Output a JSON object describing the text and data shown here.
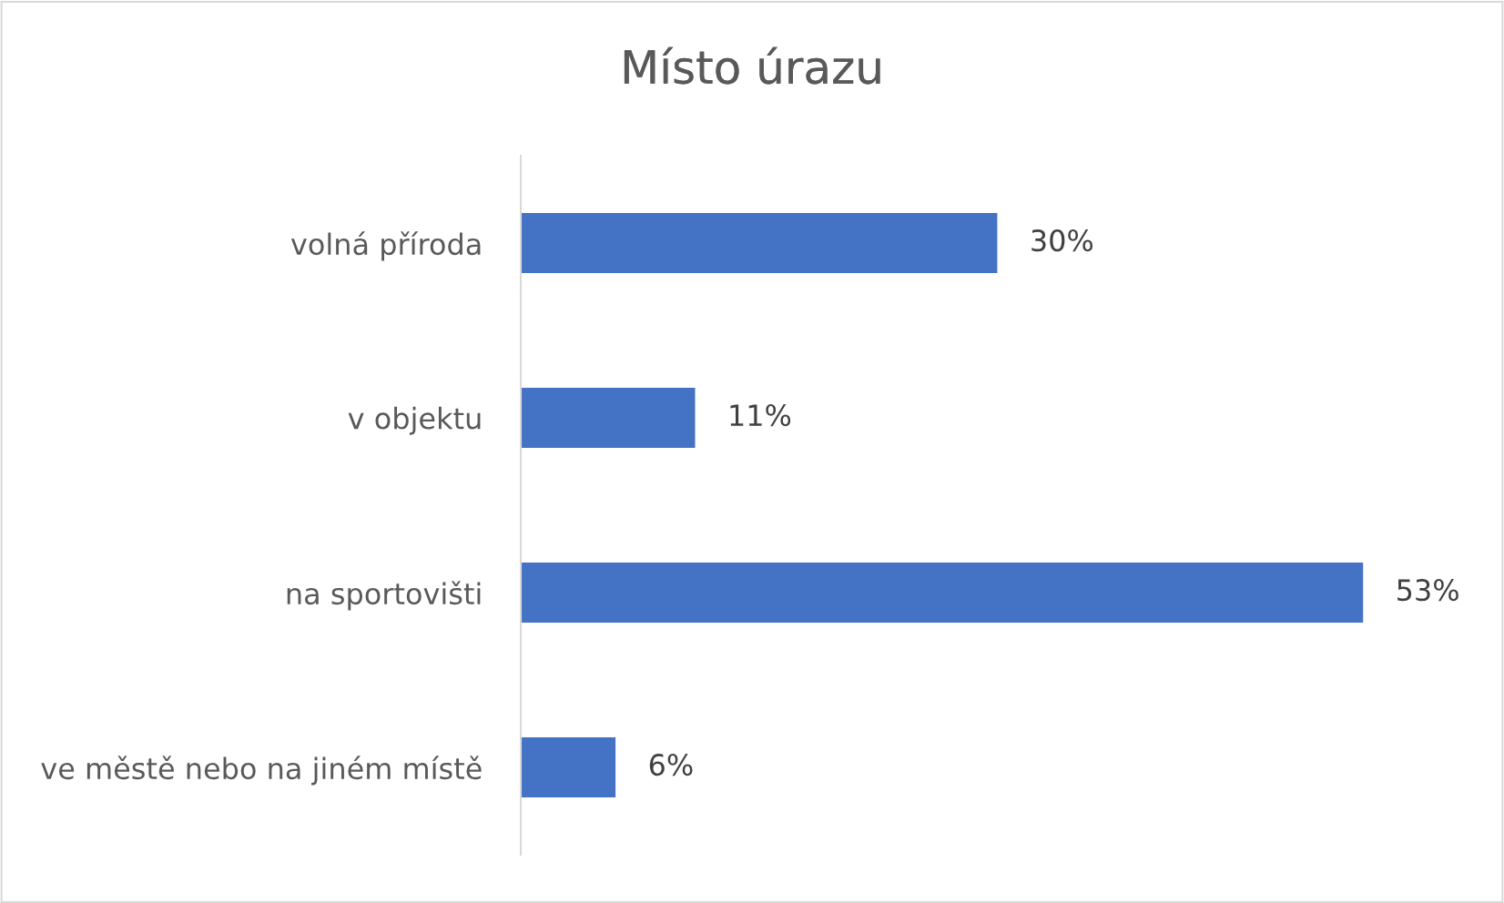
{
  "chart_data": {
    "type": "bar",
    "title": "Místo úrazu",
    "orientation": "horizontal",
    "categories": [
      "volná příroda",
      "v objektu",
      "na sportovišti",
      "ve městě nebo na jiném místě"
    ],
    "values": [
      30,
      11,
      53,
      6
    ],
    "value_labels": [
      "30%",
      "11%",
      "53%",
      "6%"
    ],
    "color": "#4472c4",
    "grid": false,
    "legend": false,
    "tick_labels": "y"
  }
}
